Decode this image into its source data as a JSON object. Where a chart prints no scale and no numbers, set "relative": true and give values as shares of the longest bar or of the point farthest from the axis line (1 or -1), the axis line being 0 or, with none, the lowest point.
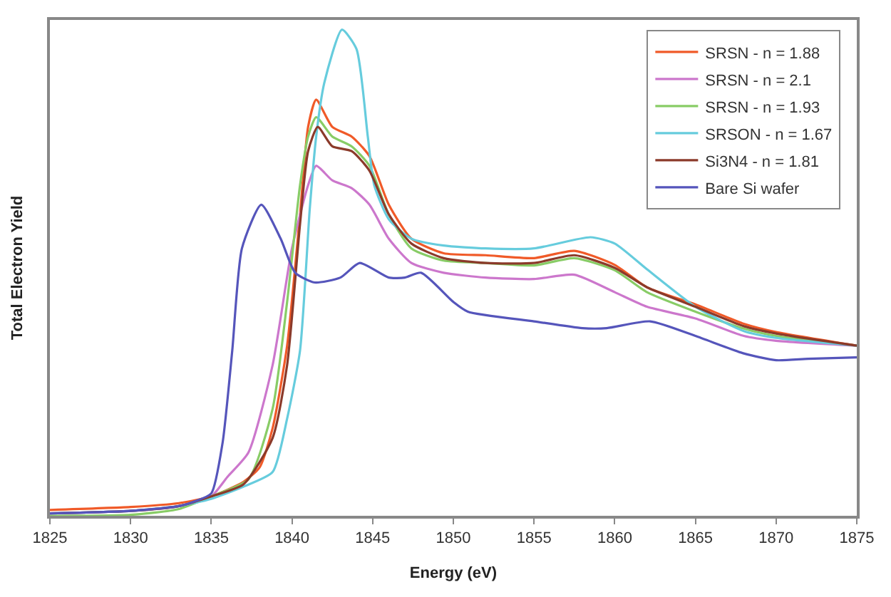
{
  "chart_data": {
    "type": "line",
    "xlabel": "Energy (eV)",
    "ylabel": "Total Electron Yield",
    "relative": true,
    "xlim": [
      1825,
      1875
    ],
    "xticks": [
      1825,
      1830,
      1835,
      1840,
      1845,
      1850,
      1855,
      1860,
      1865,
      1870,
      1875
    ],
    "grid": false,
    "legend": "top right",
    "marker": "none",
    "line_style": "solid",
    "series": [
      {
        "name": "SRSN - n = 1.88",
        "color": "#f05a28",
        "x": [
          1825,
          1830,
          1833,
          1835,
          1837,
          1838,
          1838.8,
          1839.7,
          1840.5,
          1841,
          1841.5,
          1842.5,
          1843.7,
          1844.8,
          1846,
          1847.4,
          1849.4,
          1852,
          1855,
          1857.5,
          1860,
          1862,
          1865,
          1868,
          1870,
          1875
        ],
        "values": [
          0.012,
          0.018,
          0.026,
          0.04,
          0.07,
          0.1,
          0.18,
          0.35,
          0.62,
          0.8,
          0.856,
          0.8,
          0.78,
          0.74,
          0.64,
          0.57,
          0.54,
          0.536,
          0.53,
          0.545,
          0.516,
          0.47,
          0.435,
          0.395,
          0.378,
          0.35
        ]
      },
      {
        "name": "SRSN - n = 2.1",
        "color": "#cc77cc",
        "x": [
          1825,
          1830,
          1833,
          1835,
          1836,
          1837.3,
          1838.8,
          1840,
          1841,
          1841.5,
          1842.5,
          1843.7,
          1844.8,
          1846,
          1847.4,
          1849.4,
          1852,
          1855,
          1857.5,
          1860,
          1862,
          1865,
          1868,
          1870,
          1875
        ],
        "values": [
          0.005,
          0.01,
          0.02,
          0.04,
          0.08,
          0.13,
          0.31,
          0.55,
          0.68,
          0.72,
          0.69,
          0.674,
          0.64,
          0.57,
          0.52,
          0.5,
          0.49,
          0.487,
          0.496,
          0.46,
          0.43,
          0.406,
          0.37,
          0.36,
          0.35
        ]
      },
      {
        "name": "SRSN - n = 1.93",
        "color": "#88cc66",
        "x": [
          1825,
          1830,
          1833,
          1835,
          1837.3,
          1838.8,
          1839.7,
          1840.5,
          1841,
          1841.5,
          1842.5,
          1843.7,
          1844.8,
          1846,
          1847.4,
          1849.4,
          1852,
          1855,
          1857.5,
          1860,
          1862,
          1865,
          1868,
          1870,
          1875
        ],
        "values": [
          0.0,
          0.002,
          0.014,
          0.04,
          0.075,
          0.22,
          0.44,
          0.68,
          0.78,
          0.82,
          0.78,
          0.76,
          0.72,
          0.62,
          0.55,
          0.525,
          0.52,
          0.515,
          0.53,
          0.505,
          0.46,
          0.42,
          0.385,
          0.37,
          0.35
        ]
      },
      {
        "name": "SRSON - n = 1.67",
        "color": "#66ccdd",
        "x": [
          1825,
          1830,
          1833,
          1835,
          1837,
          1838.8,
          1839.7,
          1840.5,
          1841.1,
          1841.5,
          1842,
          1843.1,
          1844,
          1844.7,
          1845.1,
          1846,
          1847.4,
          1849.4,
          1852,
          1855,
          1858.5,
          1860,
          1862,
          1865,
          1868,
          1870,
          1875
        ],
        "values": [
          0.005,
          0.01,
          0.02,
          0.035,
          0.06,
          0.09,
          0.2,
          0.34,
          0.63,
          0.78,
          0.89,
          1.0,
          0.96,
          0.78,
          0.68,
          0.61,
          0.57,
          0.556,
          0.55,
          0.55,
          0.573,
          0.56,
          0.507,
          0.43,
          0.38,
          0.366,
          0.35
        ]
      },
      {
        "name": "Si3N4 - n = 1.81",
        "color": "#8b3a2a",
        "x": [
          1825,
          1830,
          1833,
          1835,
          1837,
          1838.8,
          1839.7,
          1840.5,
          1841,
          1841.6,
          1842.5,
          1843.7,
          1844.8,
          1846,
          1847.4,
          1849.4,
          1852,
          1855,
          1857.5,
          1860,
          1862,
          1865,
          1868,
          1870,
          1875
        ],
        "values": [
          0.005,
          0.01,
          0.02,
          0.04,
          0.065,
          0.16,
          0.31,
          0.6,
          0.75,
          0.8,
          0.76,
          0.75,
          0.71,
          0.62,
          0.56,
          0.53,
          0.52,
          0.52,
          0.536,
          0.51,
          0.47,
          0.43,
          0.39,
          0.375,
          0.35
        ]
      },
      {
        "name": "Bare Si wafer",
        "color": "#5555bb",
        "x": [
          1825,
          1830,
          1833,
          1834,
          1835,
          1835.7,
          1836.3,
          1836.9,
          1838.1,
          1839.3,
          1840.2,
          1841.4,
          1843,
          1844.2,
          1846,
          1847,
          1848,
          1850,
          1850.9,
          1855,
          1858,
          1859.5,
          1862.2,
          1865,
          1868,
          1870,
          1872,
          1875
        ],
        "values": [
          0.005,
          0.01,
          0.02,
          0.03,
          0.046,
          0.15,
          0.34,
          0.55,
          0.64,
          0.57,
          0.5,
          0.48,
          0.49,
          0.52,
          0.49,
          0.49,
          0.5,
          0.44,
          0.42,
          0.4,
          0.386,
          0.386,
          0.4,
          0.37,
          0.334,
          0.32,
          0.323,
          0.326
        ]
      }
    ]
  }
}
